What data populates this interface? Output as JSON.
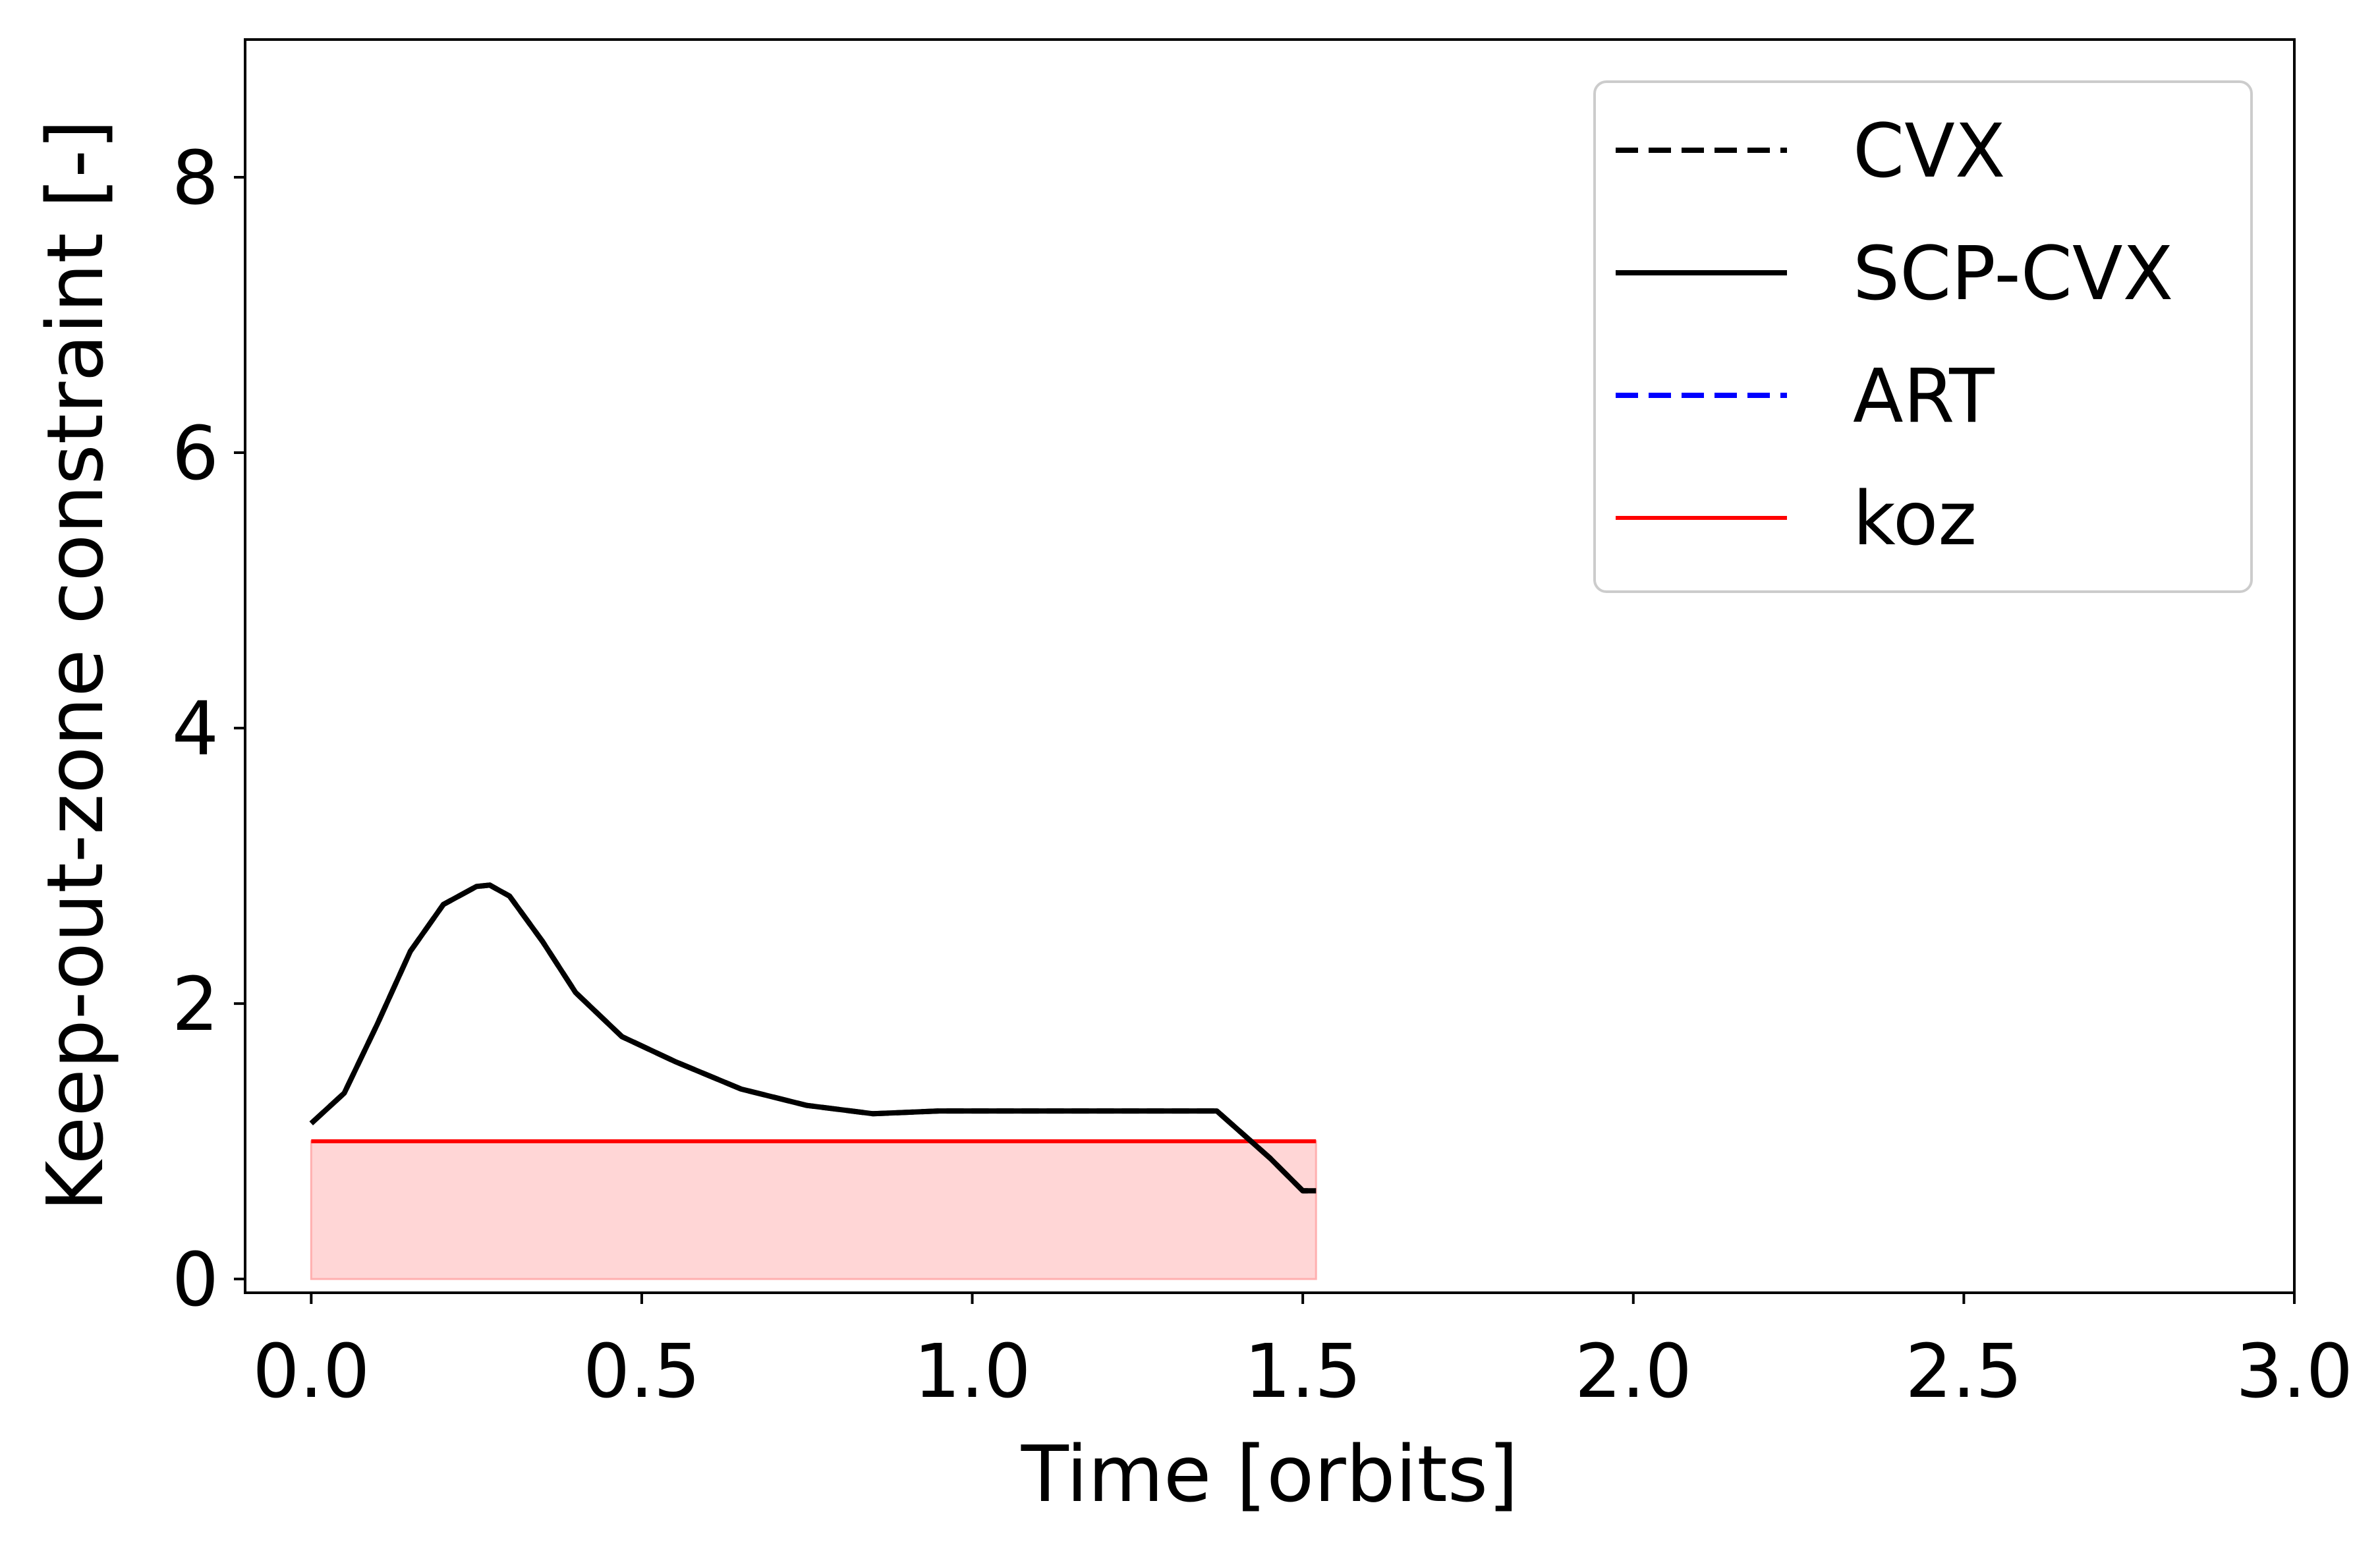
{
  "chart_data": {
    "type": "line",
    "xlabel": "Time [orbits]",
    "ylabel": "Keep-out-zone constraint [-]",
    "xlim": [
      -0.1,
      3.0
    ],
    "ylim": [
      -0.1,
      9.0
    ],
    "xticks": [
      0.0,
      0.5,
      1.0,
      1.5,
      2.0,
      2.5,
      3.0
    ],
    "xtick_labels": [
      "0.0",
      "0.5",
      "1.0",
      "1.5",
      "2.0",
      "2.5",
      "3.0"
    ],
    "yticks": [
      0,
      2,
      4,
      6,
      8
    ],
    "ytick_labels": [
      "0",
      "2",
      "4",
      "6",
      "8"
    ],
    "grid": false,
    "legend_position": "top-right",
    "series": [
      {
        "name": "CVX",
        "color": "#000000",
        "style": "dashed",
        "x": [
          0.0,
          0.05,
          0.1,
          0.15,
          0.2,
          0.25,
          0.27,
          0.3,
          0.35,
          0.4,
          0.47,
          0.55,
          0.65,
          0.75,
          0.85,
          0.95,
          1.05,
          1.15,
          1.25,
          1.37,
          1.45,
          1.5,
          1.52
        ],
        "y": [
          1.13,
          1.35,
          1.85,
          2.38,
          2.72,
          2.85,
          2.86,
          2.78,
          2.45,
          2.08,
          1.76,
          1.58,
          1.38,
          1.26,
          1.2,
          1.22,
          1.22,
          1.22,
          1.22,
          1.22,
          0.88,
          0.64,
          0.64
        ]
      },
      {
        "name": "SCP-CVX",
        "color": "#000000",
        "style": "solid",
        "x": [
          0.0,
          0.05,
          0.1,
          0.15,
          0.2,
          0.25,
          0.27,
          0.3,
          0.35,
          0.4,
          0.47,
          0.55,
          0.65,
          0.75,
          0.85,
          0.95,
          1.05,
          1.15,
          1.25,
          1.37,
          1.45,
          1.5,
          1.52
        ],
        "y": [
          1.13,
          1.35,
          1.85,
          2.38,
          2.72,
          2.85,
          2.86,
          2.78,
          2.45,
          2.08,
          1.76,
          1.58,
          1.38,
          1.26,
          1.2,
          1.22,
          1.22,
          1.22,
          1.22,
          1.22,
          0.88,
          0.64,
          0.64
        ]
      },
      {
        "name": "ART",
        "color": "#0000ff",
        "style": "dashed",
        "x": [],
        "y": []
      },
      {
        "name": "koz",
        "color": "#ff0000",
        "style": "solid",
        "x": [
          0.0,
          1.52
        ],
        "y": [
          1.0,
          1.0
        ]
      }
    ],
    "shaded_region": {
      "x": [
        0.0,
        1.52
      ],
      "y_low": 0.0,
      "y_high": 1.0,
      "color": "#ffc0c0"
    }
  }
}
